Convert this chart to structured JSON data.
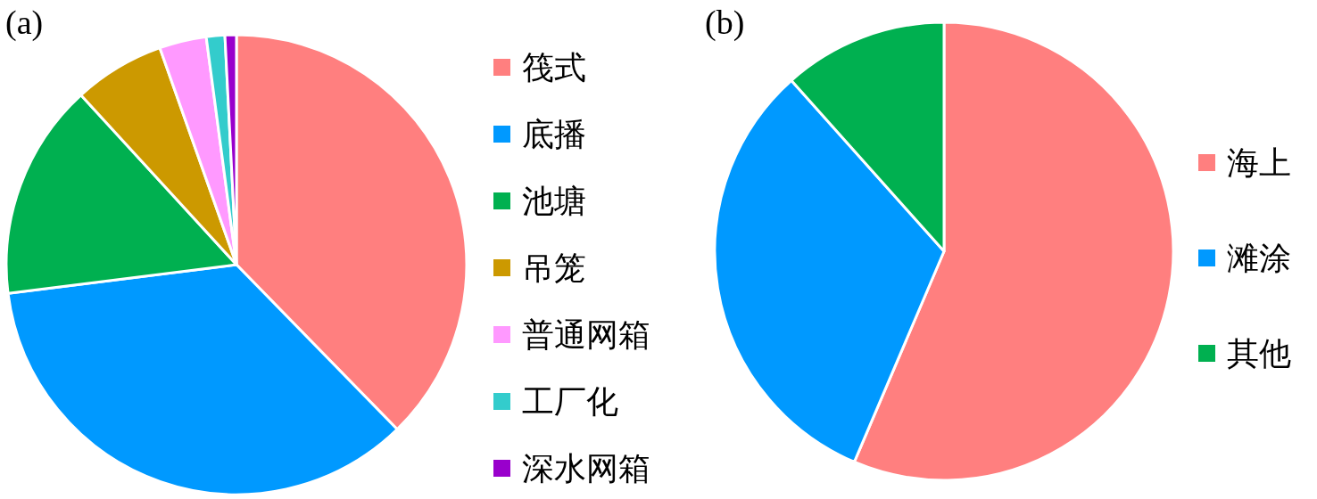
{
  "chart_data": [
    {
      "type": "pie",
      "title": "(a)",
      "categories": [
        "筏式",
        "底播",
        "池塘",
        "吊笼",
        "普通网箱",
        "工厂化",
        "深水网箱"
      ],
      "values": [
        37.7,
        35.3,
        15.2,
        6.4,
        3.3,
        1.3,
        0.8
      ],
      "colors": [
        "#ff7f7f",
        "#0099ff",
        "#00b050",
        "#cc9900",
        "#ff99ff",
        "#33cccc",
        "#9900cc"
      ],
      "legend": "right"
    },
    {
      "type": "pie",
      "title": "(b)",
      "categories": [
        "海上",
        "滩涂",
        "其他"
      ],
      "values": [
        56.4,
        32.0,
        11.6
      ],
      "colors": [
        "#ff7f7f",
        "#0099ff",
        "#00b050"
      ],
      "legend": "right"
    }
  ]
}
